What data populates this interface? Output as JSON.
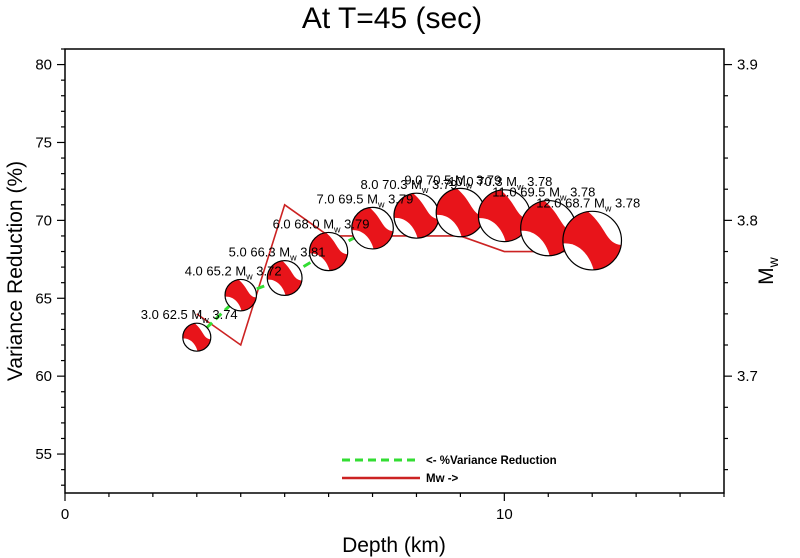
{
  "chart_data": {
    "type": "line",
    "title": "At T=45 (sec)",
    "xlabel": "Depth (km)",
    "ylabel": "Variance Reduction (%)",
    "y2label": "M",
    "y2label_sub": "w",
    "xlim": [
      0,
      15
    ],
    "ylim": [
      52.5,
      81
    ],
    "y2lim": [
      3.625,
      3.91
    ],
    "xticks": [
      0,
      10
    ],
    "yticks": [
      55,
      60,
      65,
      70,
      75,
      80
    ],
    "y2ticks": [
      3.7,
      3.8,
      3.9
    ],
    "y2ticklabels": [
      "3.7",
      "3.8",
      "3.9"
    ],
    "grid": false,
    "legend_position": "bottom-center",
    "series": [
      {
        "name": "<- %Variance Reduction",
        "color": "#33dd33",
        "style": "dashed",
        "axis": "left",
        "x": [
          3,
          4,
          5,
          6,
          7,
          8,
          9,
          10,
          11,
          12
        ],
        "y": [
          62.5,
          65.2,
          66.3,
          68.0,
          69.5,
          70.3,
          70.5,
          70.3,
          69.5,
          68.7
        ]
      },
      {
        "name": "Mw ->",
        "color": "#cc2222",
        "style": "solid",
        "axis": "right",
        "x": [
          3,
          4,
          5,
          6,
          7,
          8,
          9,
          10,
          11,
          12
        ],
        "y": [
          3.74,
          3.72,
          3.81,
          3.79,
          3.79,
          3.79,
          3.79,
          3.78,
          3.78,
          3.78
        ]
      }
    ],
    "annotations": [
      {
        "depth_label": "3.0",
        "vr_label": "62.5",
        "mw_label": "3.74"
      },
      {
        "depth_label": "4.0",
        "vr_label": "65.2",
        "mw_label": "3.72"
      },
      {
        "depth_label": "5.0",
        "vr_label": "66.3",
        "mw_label": "3.81"
      },
      {
        "depth_label": "6.0",
        "vr_label": "68.0",
        "mw_label": "3.79"
      },
      {
        "depth_label": "7.0",
        "vr_label": "69.5",
        "mw_label": "3.79"
      },
      {
        "depth_label": "8.0",
        "vr_label": "70.3",
        "mw_label": "3.79"
      },
      {
        "depth_label": "9.0",
        "vr_label": "70.5",
        "mw_label": "3.79"
      },
      {
        "depth_label": "10.0",
        "vr_label": "70.3",
        "mw_label": "3.78"
      },
      {
        "depth_label": "11.0",
        "vr_label": "69.5",
        "mw_label": "3.78"
      },
      {
        "depth_label": "12.0",
        "vr_label": "68.7",
        "mw_label": "3.78"
      }
    ],
    "beachball_colors": {
      "fill": "#e8141a",
      "background": "#ffffff",
      "outline": "#000000"
    }
  }
}
